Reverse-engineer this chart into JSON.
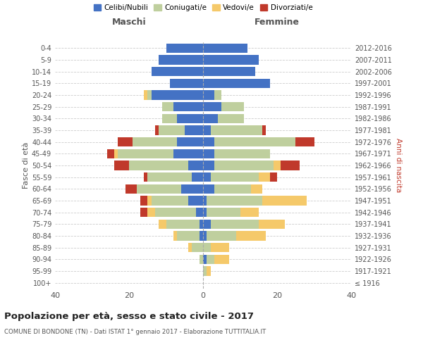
{
  "age_groups": [
    "100+",
    "95-99",
    "90-94",
    "85-89",
    "80-84",
    "75-79",
    "70-74",
    "65-69",
    "60-64",
    "55-59",
    "50-54",
    "45-49",
    "40-44",
    "35-39",
    "30-34",
    "25-29",
    "20-24",
    "15-19",
    "10-14",
    "5-9",
    "0-4"
  ],
  "birth_years": [
    "≤ 1916",
    "1917-1921",
    "1922-1926",
    "1927-1931",
    "1932-1936",
    "1937-1941",
    "1942-1946",
    "1947-1951",
    "1952-1956",
    "1957-1961",
    "1962-1966",
    "1967-1971",
    "1972-1976",
    "1977-1981",
    "1982-1986",
    "1987-1991",
    "1992-1996",
    "1997-2001",
    "2002-2006",
    "2007-2011",
    "2012-2016"
  ],
  "maschi": {
    "celibi": [
      0,
      0,
      0,
      0,
      1,
      1,
      2,
      4,
      6,
      3,
      4,
      8,
      7,
      5,
      7,
      8,
      14,
      9,
      14,
      12,
      10
    ],
    "coniugati": [
      0,
      0,
      1,
      3,
      6,
      9,
      11,
      10,
      12,
      12,
      16,
      15,
      12,
      7,
      4,
      3,
      1,
      0,
      0,
      0,
      0
    ],
    "vedovi": [
      0,
      0,
      0,
      1,
      1,
      2,
      2,
      1,
      0,
      0,
      0,
      1,
      0,
      0,
      0,
      0,
      1,
      0,
      0,
      0,
      0
    ],
    "divorziati": [
      0,
      0,
      0,
      0,
      0,
      0,
      2,
      2,
      3,
      1,
      4,
      2,
      4,
      1,
      0,
      0,
      0,
      0,
      0,
      0,
      0
    ]
  },
  "femmine": {
    "nubili": [
      0,
      0,
      1,
      0,
      1,
      2,
      1,
      1,
      3,
      2,
      3,
      3,
      3,
      2,
      4,
      5,
      3,
      18,
      14,
      15,
      12
    ],
    "coniugate": [
      0,
      1,
      2,
      2,
      8,
      13,
      9,
      15,
      10,
      13,
      16,
      15,
      22,
      14,
      7,
      6,
      2,
      0,
      0,
      0,
      0
    ],
    "vedove": [
      0,
      1,
      4,
      5,
      8,
      7,
      5,
      12,
      3,
      3,
      2,
      0,
      0,
      0,
      0,
      0,
      0,
      0,
      0,
      0,
      0
    ],
    "divorziate": [
      0,
      0,
      0,
      0,
      0,
      0,
      0,
      0,
      0,
      2,
      5,
      0,
      5,
      1,
      0,
      0,
      0,
      0,
      0,
      0,
      0
    ]
  },
  "colors": {
    "celibi_nubili": "#4472C4",
    "coniugati": "#BFCF9E",
    "vedovi": "#F5C96A",
    "divorziati": "#C0392B"
  },
  "xlim": 40,
  "title": "Popolazione per età, sesso e stato civile - 2017",
  "subtitle": "COMUNE DI BONDONE (TN) - Dati ISTAT 1° gennaio 2017 - Elaborazione TUTTITALIA.IT",
  "ylabel_left": "Fasce di età",
  "ylabel_right": "Anni di nascita",
  "xlabel_maschi": "Maschi",
  "xlabel_femmine": "Femmine",
  "legend_labels": [
    "Celibi/Nubili",
    "Coniugati/e",
    "Vedovi/e",
    "Divorziati/e"
  ],
  "background_color": "#ffffff"
}
